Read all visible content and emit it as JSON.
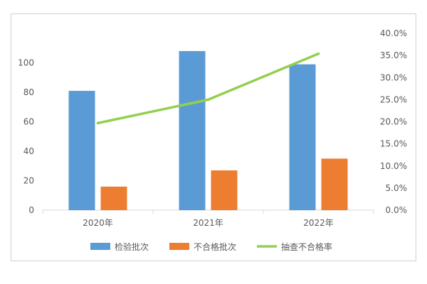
{
  "chart_data": {
    "type": "bar",
    "categories": [
      "2020年",
      "2021年",
      "2022年"
    ],
    "series": [
      {
        "name": "检验批次",
        "type": "bar",
        "axis": "left",
        "color": "#5B9BD5",
        "values": [
          81,
          108,
          99
        ]
      },
      {
        "name": "不合格批次",
        "type": "bar",
        "axis": "left",
        "color": "#ED7D31",
        "values": [
          16,
          27,
          35
        ]
      },
      {
        "name": "抽查不合格率",
        "type": "line",
        "axis": "right",
        "color": "#92D050",
        "values": [
          0.197,
          0.25,
          0.354
        ]
      }
    ],
    "y_left": {
      "min": 0,
      "max": 120,
      "ticks": [
        0,
        20,
        40,
        60,
        80,
        100
      ],
      "tick_labels": [
        "0",
        "20",
        "40",
        "60",
        "80",
        "100"
      ]
    },
    "y_right": {
      "min": 0,
      "max": 0.4,
      "ticks": [
        0,
        0.05,
        0.1,
        0.15,
        0.2,
        0.25,
        0.3,
        0.35,
        0.4
      ],
      "tick_labels": [
        "0.0%",
        "5.0%",
        "10.0%",
        "15.0%",
        "20.0%",
        "25.0%",
        "30.0%",
        "35.0%",
        "40.0%"
      ]
    },
    "grid": false,
    "legend_position": "bottom",
    "title": "",
    "xlabel": "",
    "ylabel": ""
  }
}
